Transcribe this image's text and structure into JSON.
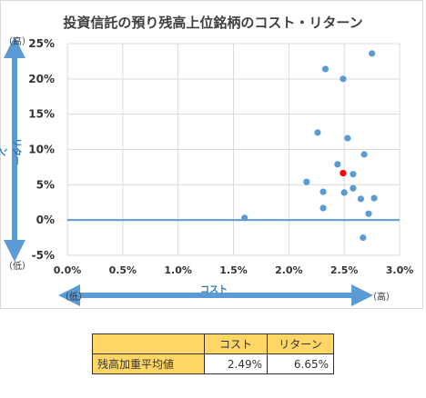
{
  "title": "投資信託の預り残高上位銘柄のコスト・リターン",
  "axis_caps": {
    "y_high": "（高）",
    "y_low": "（低）",
    "x_low": "（低）",
    "x_high": "（高）"
  },
  "chart_data": {
    "type": "scatter",
    "title": "投資信託の預り残高上位銘柄のコスト・リターン",
    "xlabel": "コスト",
    "ylabel": "リターン",
    "xlim": [
      0,
      0.03
    ],
    "ylim": [
      -0.05,
      0.25
    ],
    "xticks": [
      "0.0%",
      "0.5%",
      "1.0%",
      "1.5%",
      "2.0%",
      "2.5%",
      "3.0%"
    ],
    "yticks": [
      "25%",
      "20%",
      "15%",
      "10%",
      "5%",
      "0%",
      "-5%"
    ],
    "grid": true,
    "series": [
      {
        "color": "#5b9bd5",
        "points": [
          [
            0.016,
            0.003
          ],
          [
            0.0233,
            0.214
          ],
          [
            0.0249,
            0.2
          ],
          [
            0.0275,
            0.236
          ],
          [
            0.0226,
            0.124
          ],
          [
            0.0253,
            0.116
          ],
          [
            0.0268,
            0.093
          ],
          [
            0.0244,
            0.079
          ],
          [
            0.0258,
            0.065
          ],
          [
            0.0216,
            0.054
          ],
          [
            0.0258,
            0.045
          ],
          [
            0.0231,
            0.04
          ],
          [
            0.025,
            0.039
          ],
          [
            0.0265,
            0.03
          ],
          [
            0.0277,
            0.031
          ],
          [
            0.0231,
            0.017
          ],
          [
            0.0272,
            0.009
          ],
          [
            0.0267,
            -0.025
          ]
        ]
      },
      {
        "color": "#ff0000",
        "points": [
          [
            0.0249,
            0.0665
          ]
        ]
      }
    ]
  },
  "summary": {
    "headers": [
      "コスト",
      "リターン"
    ],
    "row_label": "残高加重平均値",
    "cost": "2.49%",
    "return": "6.65%"
  }
}
